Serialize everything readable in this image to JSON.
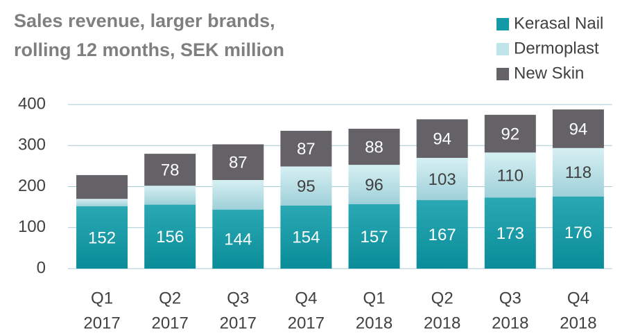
{
  "chart_data": {
    "type": "stacked_bar",
    "title_lines": [
      "Sales revenue, larger brands,",
      "rolling 12 months, SEK million"
    ],
    "categories": [
      [
        "Q1",
        "2017"
      ],
      [
        "Q2",
        "2017"
      ],
      [
        "Q3",
        "2017"
      ],
      [
        "Q4",
        "2017"
      ],
      [
        "Q1",
        "2018"
      ],
      [
        "Q2",
        "2018"
      ],
      [
        "Q3",
        "2018"
      ],
      [
        "Q4",
        "2018"
      ]
    ],
    "series": [
      {
        "name": "Kerasal Nail",
        "color": "#139aa6",
        "values": [
          152,
          156,
          144,
          154,
          157,
          167,
          173,
          176
        ],
        "value_labels": [
          "152",
          "156",
          "144",
          "154",
          "157",
          "167",
          "173",
          "176"
        ]
      },
      {
        "name": "Dermoplast",
        "color": "#bfe4ea",
        "values": [
          18,
          46,
          72,
          95,
          96,
          103,
          110,
          118
        ],
        "value_labels": [
          null,
          null,
          null,
          "95",
          "96",
          "103",
          "110",
          "118"
        ]
      },
      {
        "name": "New Skin",
        "color": "#646267",
        "values": [
          58,
          78,
          87,
          87,
          88,
          94,
          92,
          94
        ],
        "value_labels": [
          null,
          "78",
          "87",
          "87",
          "88",
          "94",
          "92",
          "94"
        ]
      }
    ],
    "ylim": [
      0,
      400
    ],
    "yticks": [
      0,
      100,
      200,
      300,
      400
    ],
    "grid": true,
    "legend": "top-right"
  }
}
